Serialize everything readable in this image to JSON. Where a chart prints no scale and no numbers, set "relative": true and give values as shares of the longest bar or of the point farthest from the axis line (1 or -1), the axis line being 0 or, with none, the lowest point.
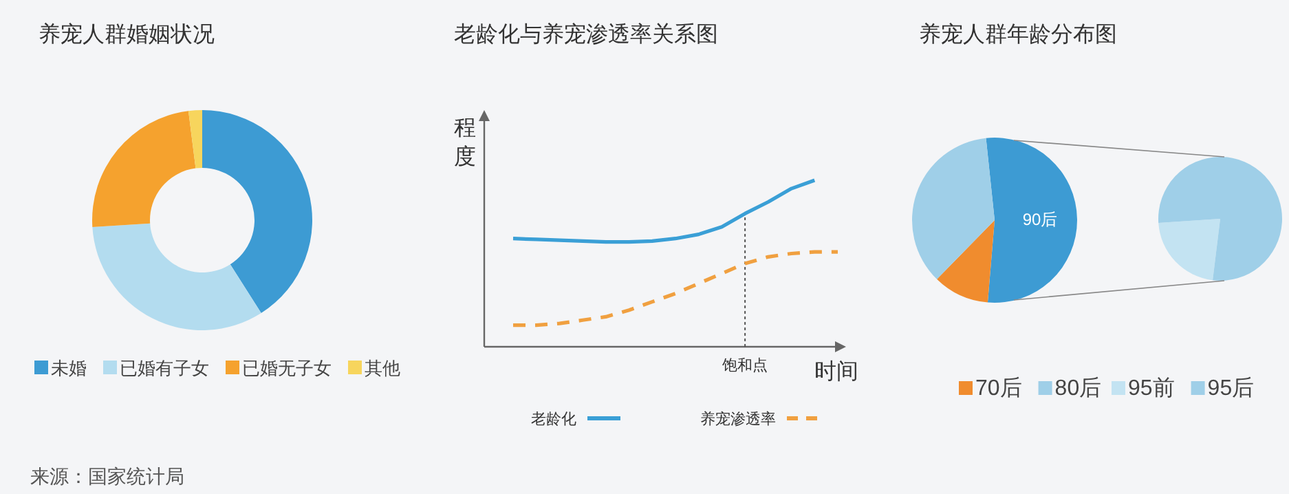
{
  "chart_data": [
    {
      "type": "donut",
      "title": "养宠人群婚姻状况",
      "categories": [
        "未婚",
        "已婚有子女",
        "已婚无子女",
        "其他"
      ],
      "values": [
        41,
        33,
        24,
        2
      ],
      "colors": [
        "#3d9bd3",
        "#b3dcef",
        "#f5a22e",
        "#f7d55d"
      ],
      "legend": "bottom",
      "annotations": [
        "来源：国家统计局"
      ]
    },
    {
      "type": "line",
      "title": "老龄化与养宠渗透率关系图",
      "relative": true,
      "xlabel": "时间",
      "ylabel": "程度",
      "legend": "bottom",
      "categories": [
        null,
        null,
        null,
        null,
        null,
        null,
        null,
        null,
        null,
        null,
        null,
        null,
        null,
        null,
        null
      ],
      "annotations": [
        "饱和点"
      ],
      "series": [
        {
          "name": "老龄化",
          "color": "#3a9fd6",
          "line_style": "solid",
          "values": [
            0.65,
            0.645,
            0.64,
            0.635,
            0.63,
            0.63,
            0.635,
            0.65,
            0.675,
            0.72,
            0.8,
            0.87,
            0.95,
            1.0,
            null
          ]
        },
        {
          "name": "养宠渗透率",
          "color": "#f0a040",
          "line_style": "dashed",
          "values": [
            0.13,
            0.13,
            0.14,
            0.16,
            0.18,
            0.22,
            0.27,
            0.32,
            0.38,
            0.44,
            0.5,
            0.54,
            0.56,
            0.57,
            0.57
          ]
        }
      ]
    },
    {
      "type": "pie",
      "title": "养宠人群年龄分布图",
      "categories": [
        "90后",
        "70后",
        "80后"
      ],
      "values": [
        53,
        11,
        36
      ],
      "colors": [
        "#3d9bd3",
        "#f08c2e",
        "#9fcfe8"
      ],
      "legend": "bottom"
    },
    {
      "type": "pie",
      "categories": [
        "95前",
        "95后"
      ],
      "values": [
        22,
        78
      ],
      "colors": [
        "#c3e3f2",
        "#9fcfe8"
      ],
      "legend": "bottom"
    }
  ]
}
